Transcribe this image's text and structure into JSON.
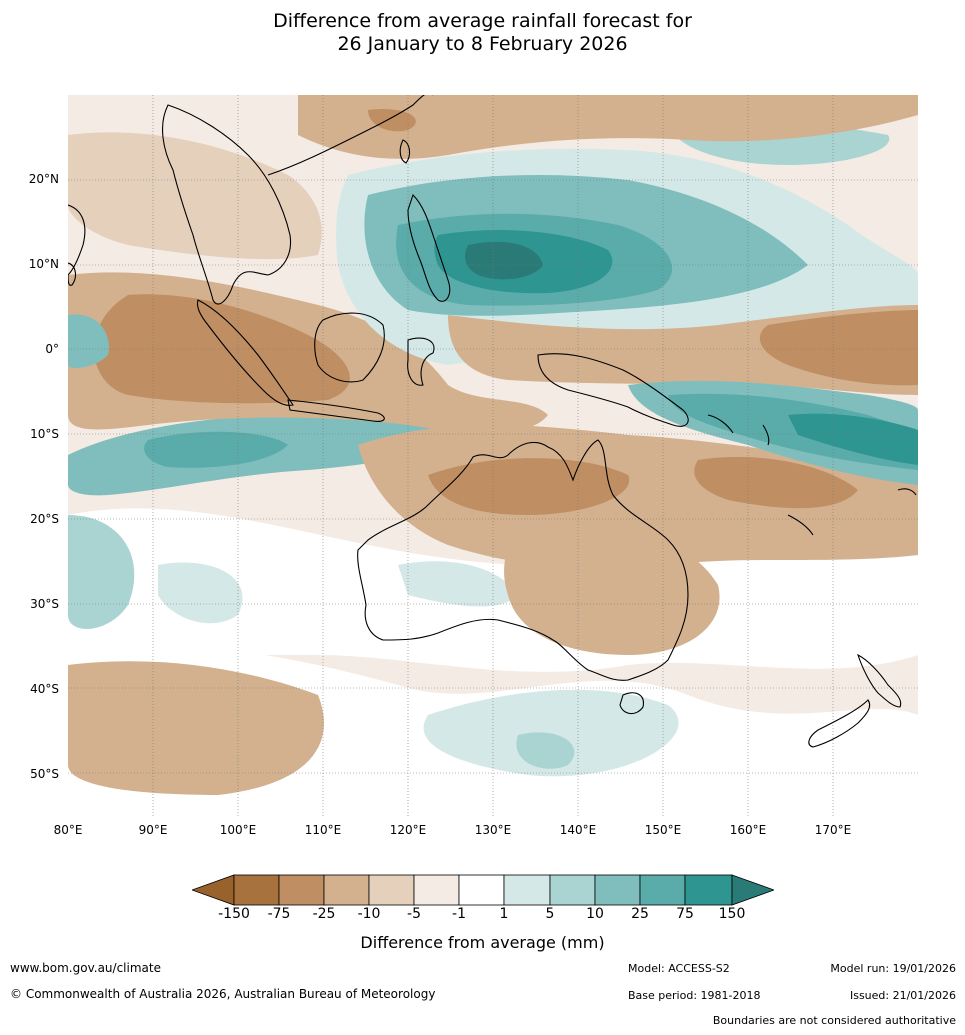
{
  "title": {
    "line1": "Difference from average rainfall forecast for",
    "line2": "26 January to 8 February 2026"
  },
  "map": {
    "lat_labels": [
      "20°N",
      "10°N",
      "0°",
      "10°S",
      "20°S",
      "30°S",
      "40°S",
      "50°S"
    ],
    "lon_labels": [
      "80°E",
      "90°E",
      "100°E",
      "110°E",
      "120°E",
      "130°E",
      "140°E",
      "150°E",
      "160°E",
      "170°E"
    ]
  },
  "legend": {
    "tick_labels": [
      "-150",
      "-75",
      "-25",
      "-10",
      "-5",
      "-1",
      "1",
      "5",
      "10",
      "25",
      "75",
      "150"
    ],
    "colors": {
      "extend_low": "#99612c",
      "b1": "#a8723f",
      "b2": "#bf8f63",
      "b3": "#d3b18f",
      "b4": "#e5d0bc",
      "b5": "#f5ebe5",
      "b6": "#ffffff",
      "b7": "#d4e9e7",
      "b8": "#a9d4d2",
      "b9": "#80bebd",
      "b10": "#5aacab",
      "b11": "#2f9590",
      "extend_high": "#2a7b78"
    },
    "title": "Difference from average (mm)"
  },
  "footer": {
    "url": "www.bom.gov.au/climate",
    "copyright": "© Commonwealth of Australia 2026, Australian Bureau of Meteorology",
    "model": "Model: ACCESS-S2",
    "model_run": "Model run: 19/01/2026",
    "base_period": "Base period: 1981-2018",
    "issued": "Issued: 21/01/2026",
    "boundaries_note": "Boundaries are not considered authoritative"
  }
}
